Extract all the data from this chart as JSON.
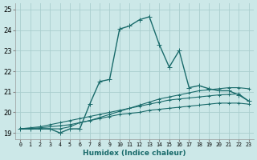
{
  "xlabel": "Humidex (Indice chaleur)",
  "bg_color": "#cce8e8",
  "grid_color": "#aacece",
  "line_color": "#1a6b6b",
  "xlim": [
    -0.5,
    23.5
  ],
  "ylim": [
    18.7,
    25.3
  ],
  "xticks": [
    0,
    1,
    2,
    3,
    4,
    5,
    6,
    7,
    8,
    9,
    10,
    11,
    12,
    13,
    14,
    15,
    16,
    17,
    18,
    19,
    20,
    21,
    22,
    23
  ],
  "yticks": [
    19,
    20,
    21,
    22,
    23,
    24,
    25
  ],
  "series": [
    {
      "x": [
        0,
        1,
        2,
        3,
        4,
        5,
        6,
        7,
        8,
        9,
        10,
        11,
        12,
        13,
        14,
        15,
        16,
        17,
        18,
        19,
        20,
        21,
        22,
        23
      ],
      "y": [
        19.2,
        19.2,
        19.2,
        19.2,
        19.0,
        19.2,
        19.2,
        20.4,
        21.5,
        21.6,
        24.05,
        24.2,
        24.5,
        24.65,
        23.3,
        22.2,
        23.0,
        21.2,
        21.3,
        21.15,
        21.05,
        21.05,
        20.85,
        20.55
      ],
      "lw": 1.0,
      "ms": 2.5
    },
    {
      "x": [
        0,
        1,
        2,
        3,
        4,
        5,
        6,
        7,
        8,
        9,
        10,
        11,
        12,
        13,
        14,
        15,
        16,
        17,
        18,
        19,
        20,
        21,
        22,
        23
      ],
      "y": [
        19.2,
        19.2,
        19.2,
        19.2,
        19.2,
        19.3,
        19.5,
        19.6,
        19.75,
        19.9,
        20.05,
        20.2,
        20.35,
        20.5,
        20.65,
        20.75,
        20.85,
        20.95,
        21.05,
        21.1,
        21.15,
        21.2,
        21.2,
        21.15
      ],
      "lw": 0.8,
      "ms": 2.0
    },
    {
      "x": [
        0,
        1,
        2,
        3,
        4,
        5,
        6,
        7,
        8,
        9,
        10,
        11,
        12,
        13,
        14,
        15,
        16,
        17,
        18,
        19,
        20,
        21,
        22,
        23
      ],
      "y": [
        19.2,
        19.25,
        19.3,
        19.4,
        19.5,
        19.6,
        19.7,
        19.8,
        19.9,
        20.0,
        20.1,
        20.2,
        20.3,
        20.4,
        20.5,
        20.6,
        20.65,
        20.7,
        20.75,
        20.8,
        20.85,
        20.87,
        20.9,
        20.55
      ],
      "lw": 0.8,
      "ms": 2.0
    },
    {
      "x": [
        0,
        1,
        2,
        3,
        4,
        5,
        6,
        7,
        8,
        9,
        10,
        11,
        12,
        13,
        14,
        15,
        16,
        17,
        18,
        19,
        20,
        21,
        22,
        23
      ],
      "y": [
        19.2,
        19.22,
        19.25,
        19.3,
        19.35,
        19.4,
        19.5,
        19.6,
        19.7,
        19.8,
        19.9,
        19.95,
        20.0,
        20.1,
        20.15,
        20.2,
        20.25,
        20.3,
        20.35,
        20.4,
        20.45,
        20.45,
        20.45,
        20.4
      ],
      "lw": 0.8,
      "ms": 2.0
    }
  ]
}
